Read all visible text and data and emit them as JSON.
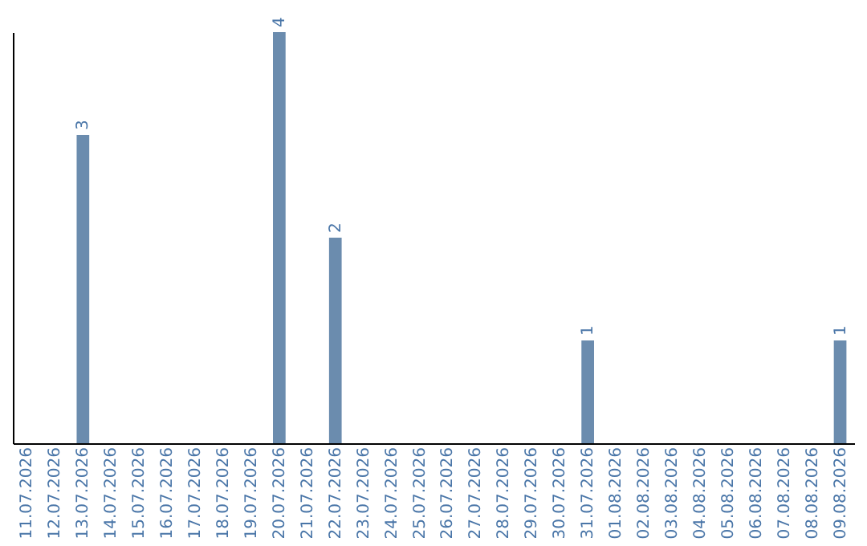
{
  "chart_data": {
    "type": "bar",
    "categories": [
      "11.07.2026",
      "12.07.2026",
      "13.07.2026",
      "14.07.2026",
      "15.07.2026",
      "16.07.2026",
      "17.07.2026",
      "18.07.2026",
      "19.07.2026",
      "20.07.2026",
      "21.07.2026",
      "22.07.2026",
      "23.07.2026",
      "24.07.2026",
      "25.07.2026",
      "26.07.2026",
      "27.07.2026",
      "28.07.2026",
      "29.07.2026",
      "30.07.2026",
      "31.07.2026",
      "01.08.2026",
      "02.08.2026",
      "03.08.2026",
      "04.08.2026",
      "05.08.2026",
      "06.08.2026",
      "07.08.2026",
      "08.08.2026",
      "09.08.2026"
    ],
    "values": [
      0,
      0,
      3,
      0,
      0,
      0,
      0,
      0,
      0,
      4,
      0,
      2,
      0,
      0,
      0,
      0,
      0,
      0,
      0,
      0,
      1,
      0,
      0,
      0,
      0,
      0,
      0,
      0,
      0,
      1
    ],
    "value_labels": [
      null,
      null,
      "3",
      null,
      null,
      null,
      null,
      null,
      null,
      "4",
      null,
      "2",
      null,
      null,
      null,
      null,
      null,
      null,
      null,
      null,
      "1",
      null,
      null,
      null,
      null,
      null,
      null,
      null,
      null,
      "1"
    ],
    "color": "#6b8cae",
    "tick_labels": "x",
    "grid": false
  }
}
